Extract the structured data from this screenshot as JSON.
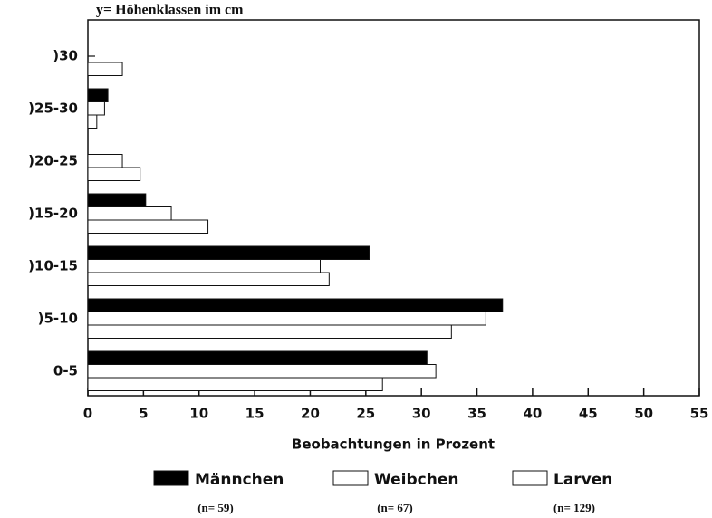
{
  "chart_data": {
    "type": "bar",
    "orientation": "horizontal",
    "title": "y= Höhenklassen im cm",
    "x_label": "Beobachtungen in Prozent",
    "categories": [
      "0-5",
      ")5-10",
      ")10-15",
      ")15-20",
      ")20-25",
      ")25-30",
      ")30"
    ],
    "series": [
      {
        "name": "Männchen",
        "n_label": "(n= 59)",
        "color": "#000000",
        "values": [
          30.5,
          37.3,
          25.3,
          5.2,
          0,
          1.8,
          0
        ]
      },
      {
        "name": "Weibchen",
        "n_label": "(n= 67)",
        "color": "#ffffff",
        "values": [
          31.3,
          35.8,
          20.9,
          7.5,
          3.1,
          1.5,
          0
        ]
      },
      {
        "name": "Larven",
        "n_label": "(n= 129)",
        "color": "#ffffff",
        "values": [
          26.5,
          32.7,
          21.7,
          10.8,
          4.7,
          0.8,
          3.1
        ]
      }
    ],
    "xlim": [
      0,
      55
    ],
    "xticks": [
      0,
      5,
      10,
      15,
      20,
      25,
      30,
      35,
      40,
      45,
      50,
      55
    ],
    "grid": false,
    "legend": "bottom"
  }
}
